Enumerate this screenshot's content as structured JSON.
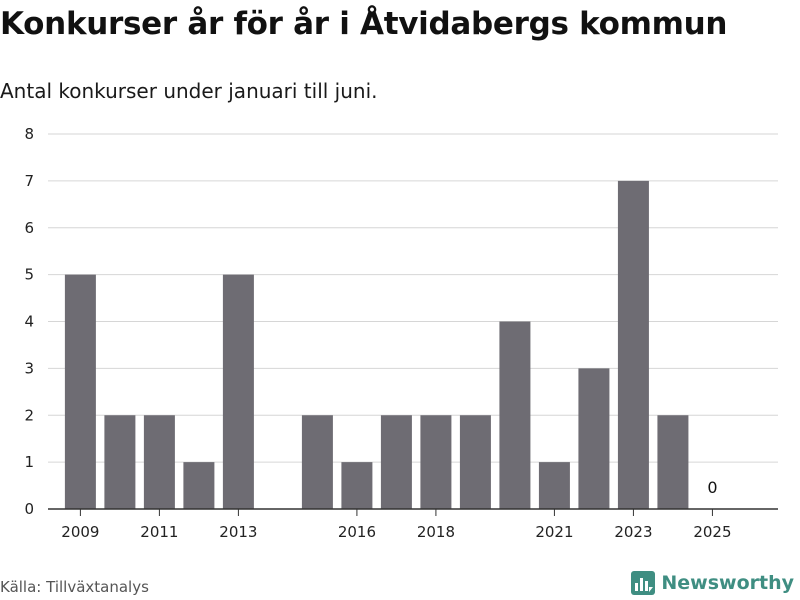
{
  "header": {
    "title": "Konkurser år för år i Åtvidabergs kommun",
    "subtitle": "Antal konkurser under januari till juni."
  },
  "footer": {
    "source": "Källa: Tillväxtanalys",
    "brand": "Newsworthy",
    "brand_icon": "newsworthy-logo-icon"
  },
  "colors": {
    "bar": "#6e6c73",
    "grid": "#d6d6d6",
    "axis": "#333333",
    "brand": "#3f8e82"
  },
  "chart_data": {
    "type": "bar",
    "x": [
      2009,
      2010,
      2011,
      2012,
      2013,
      2015,
      2016,
      2017,
      2018,
      2019,
      2020,
      2021,
      2022,
      2023,
      2024,
      2025
    ],
    "values": [
      5,
      2,
      2,
      1,
      5,
      2,
      1,
      2,
      2,
      2,
      4,
      1,
      3,
      7,
      2,
      0
    ],
    "x_tick_labels": [
      "2009",
      "2011",
      "2013",
      "2016",
      "2018",
      "2021",
      "2023",
      "2025"
    ],
    "y_ticks": [
      0,
      1,
      2,
      3,
      4,
      5,
      6,
      7,
      8
    ],
    "ylim": [
      0,
      8
    ],
    "data_labels": [
      {
        "x": 2025,
        "label": "0"
      }
    ],
    "grid": true,
    "legend": "none",
    "xlabel": "",
    "ylabel": ""
  }
}
